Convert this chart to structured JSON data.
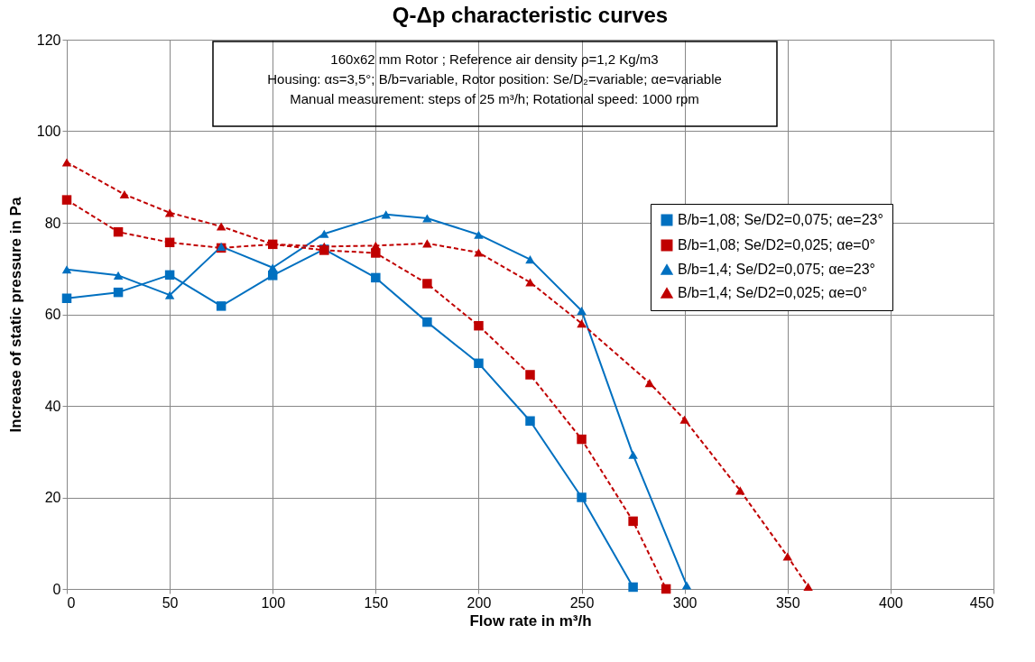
{
  "chart_data": {
    "type": "line",
    "title": "Q-Δp characteristic curves",
    "xlabel": "Flow rate in m³/h",
    "ylabel": "Increase of static pressure  in Pa",
    "annotations": [
      "160x62 mm Rotor ; Reference air density ρ=1,2 Kg/m3",
      "Housing: αs=3,5°; B/b=variable, Rotor position: Se/D₂=variable; αe=variable",
      "Manual measurement: steps of 25 m³/h; Rotational speed: 1000 rpm"
    ],
    "xlim": [
      0,
      450
    ],
    "xticks": [
      0,
      50,
      100,
      150,
      200,
      250,
      300,
      350,
      400,
      450
    ],
    "ylim": [
      0,
      120
    ],
    "yticks": [
      0,
      20,
      40,
      60,
      80,
      100,
      120
    ],
    "grid": true,
    "legend": "right",
    "series": [
      {
        "name": "B/b=1,08; Se/D2=0,075; αe=23°",
        "color": "#0070c0",
        "marker": "square",
        "line_style": "solid",
        "x": [
          0,
          25,
          50,
          75,
          100,
          125,
          150,
          175,
          200,
          225,
          250,
          275
        ],
        "values": [
          63.5,
          64.8,
          68.6,
          61.8,
          68.5,
          74.2,
          68,
          58.3,
          49.3,
          36.7,
          20,
          0.4
        ]
      },
      {
        "name": "B/b=1,08; Se/D2=0,025; αe=0°",
        "color": "#c00000",
        "marker": "square",
        "line_style": "dashed",
        "x": [
          0,
          25,
          50,
          75,
          100,
          125,
          150,
          175,
          200,
          225,
          250,
          275,
          291
        ],
        "values": [
          85,
          78,
          75.7,
          74.5,
          75.3,
          74,
          73.4,
          66.7,
          57.5,
          46.8,
          32.7,
          14.8,
          0
        ]
      },
      {
        "name": "B/b=1,4; Se/D2=0,075; αe=23°",
        "color": "#0070c0",
        "marker": "triangle",
        "line_style": "solid",
        "x": [
          0,
          25,
          50,
          75,
          100,
          125,
          155,
          175,
          200,
          225,
          250,
          275,
          301
        ],
        "values": [
          69.8,
          68.5,
          64.2,
          74.8,
          70.2,
          77.6,
          81.8,
          81,
          77.4,
          72,
          60.8,
          29.3,
          0.8
        ]
      },
      {
        "name": "B/b=1,4; Se/D2=0,025; αe=0°",
        "color": "#c00000",
        "marker": "triangle",
        "line_style": "dashed",
        "x": [
          0,
          28,
          50,
          75,
          100,
          125,
          150,
          175,
          200,
          225,
          250,
          283,
          300,
          327,
          350,
          360
        ],
        "values": [
          93.2,
          86.2,
          82.2,
          79.2,
          75.3,
          74.8,
          75,
          75.5,
          73.5,
          67,
          58,
          45,
          37,
          21.5,
          7.1,
          0.5
        ]
      }
    ]
  }
}
